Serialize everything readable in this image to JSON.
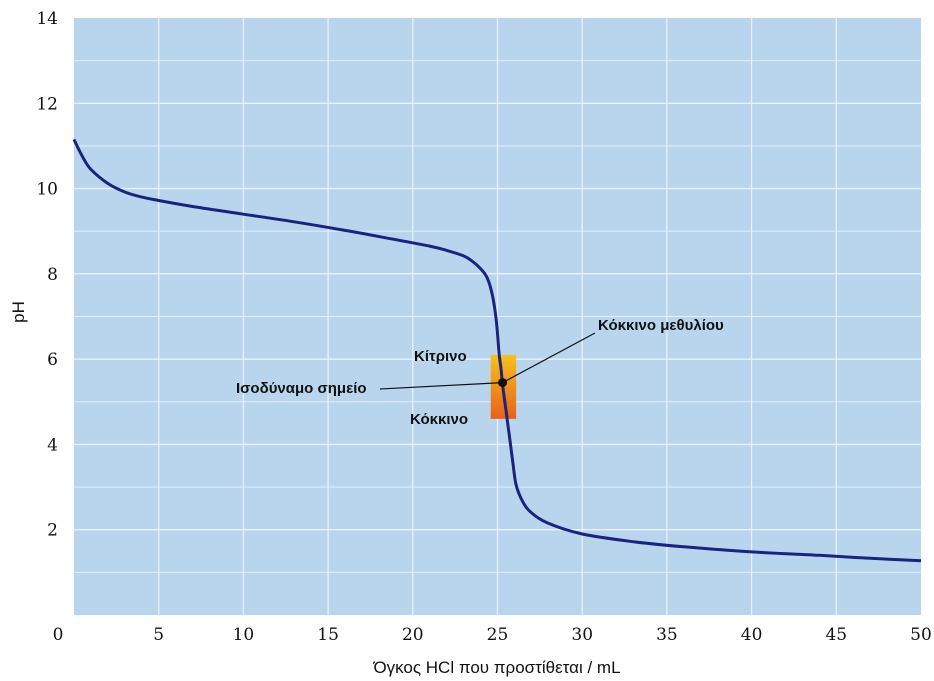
{
  "chart_data": {
    "type": "line",
    "xlabel": "Όγκος HCl που προστίθεται / mL",
    "ylabel": "pH",
    "xlim": [
      0,
      50
    ],
    "ylim": [
      0,
      14
    ],
    "x_ticks": [
      "0",
      "5",
      "10",
      "15",
      "20",
      "25",
      "30",
      "35",
      "40",
      "45",
      "50"
    ],
    "y_ticks": [
      "2",
      "4",
      "6",
      "8",
      "10",
      "12",
      "14"
    ],
    "grid": true,
    "colors": {
      "plot_background": "#b9d5ee",
      "grid": "#e8f1fa",
      "curve": "#1a237e",
      "indicator_top": "#f6c21c",
      "indicator_bottom": "#e8601c",
      "point": "#111111"
    },
    "series": [
      {
        "x": [
          0,
          0.5,
          1,
          2,
          3,
          4,
          5,
          7,
          10,
          13,
          16,
          19,
          21,
          22,
          23,
          23.5,
          24,
          24.4,
          24.7,
          24.9,
          25.0,
          25.1,
          25.2,
          25.3,
          25.5,
          25.7,
          25.9,
          26.1,
          26.5,
          27,
          28,
          30,
          33,
          36,
          40,
          44,
          47,
          50
        ],
        "y": [
          11.15,
          10.75,
          10.45,
          10.12,
          9.92,
          9.8,
          9.72,
          9.58,
          9.4,
          9.22,
          9.02,
          8.8,
          8.65,
          8.55,
          8.42,
          8.3,
          8.12,
          7.9,
          7.5,
          7.0,
          6.6,
          6.1,
          5.8,
          5.4,
          4.8,
          4.2,
          3.6,
          3.05,
          2.65,
          2.4,
          2.15,
          1.9,
          1.72,
          1.6,
          1.48,
          1.4,
          1.33,
          1.27
        ]
      }
    ],
    "equivalence_point": {
      "x": 25.3,
      "y": 5.45
    },
    "indicator_band": {
      "x_range": [
        24.6,
        26.1
      ],
      "y_range": [
        4.6,
        6.1
      ]
    },
    "annotations": {
      "indicator": "Κόκκινο μεθυλίου",
      "top_color": "Κίτρινο",
      "equivalence": "Ισοδύναμο σημείο",
      "bottom_color": "Κόκκινο"
    }
  }
}
